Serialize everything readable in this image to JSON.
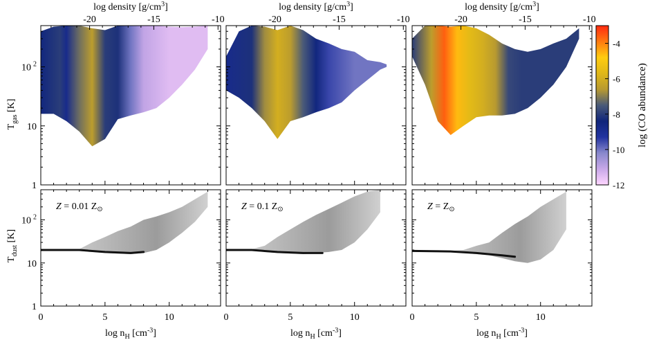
{
  "figure": {
    "top_axis_label": "log density [g/cm³]",
    "top_axis_label_base": "log density [g/cm",
    "top_axis_label_sup": "3",
    "top_axis_label_end": "]",
    "bottom_axis_label": "log n_H [cm⁻³]",
    "bottom_axis_label_parts": [
      "log n",
      "H",
      " [cm",
      "-3",
      "]"
    ],
    "row_labels": {
      "gas": {
        "main": "T",
        "sub": "gas",
        "unit": " [K]"
      },
      "dust": {
        "main": "T",
        "sub": "dust",
        "unit": " [K]"
      }
    },
    "panel_annotations": [
      {
        "prefix": "Z",
        "text": " = 0.01 Z",
        "sun": "⊙"
      },
      {
        "prefix": "Z",
        "text": " = 0.1 Z",
        "sun": "⊙"
      },
      {
        "prefix": "Z",
        "text": " = Z",
        "sun": "⊙"
      }
    ],
    "colorbar": {
      "label": "log (CO abundance)",
      "ticks": [
        -4,
        -6,
        -8,
        -10,
        -12
      ],
      "range": [
        -12,
        -3
      ],
      "colors": [
        "#ffd6ff",
        "#c8a8e8",
        "#8888cc",
        "#2233a0",
        "#10257a",
        "#4a5a78",
        "#b89a30",
        "#e0b818",
        "#ffcc10",
        "#ff7a10",
        "#ff2a10"
      ]
    }
  },
  "chart_data": [
    {
      "type": "heatmap",
      "panel": "top-left",
      "metallicity": "0.01 Z⊙",
      "x_bottom": {
        "label": "log n_H [cm^-3]",
        "range": [
          0,
          14
        ],
        "ticks": [
          0,
          5,
          10
        ]
      },
      "x_top": {
        "label": "log density [g/cm3]",
        "ticks": [
          -20,
          -15,
          -10
        ]
      },
      "y": {
        "label": "T_gas [K]",
        "scale": "log",
        "range": [
          1,
          500
        ],
        "ticks": [
          1,
          10,
          100
        ],
        "tick_labels": [
          "1",
          "10",
          "10²"
        ]
      },
      "color": "log (CO abundance)",
      "upper_envelope": [
        [
          0,
          400
        ],
        [
          1,
          480
        ],
        [
          2,
          500
        ],
        [
          3,
          500
        ],
        [
          4,
          450
        ],
        [
          5,
          420
        ],
        [
          6,
          500
        ],
        [
          7,
          500
        ],
        [
          8,
          500
        ],
        [
          9,
          500
        ],
        [
          10,
          480
        ],
        [
          11,
          470
        ],
        [
          12,
          480
        ],
        [
          13,
          500
        ]
      ],
      "lower_envelope": [
        [
          0,
          16
        ],
        [
          1,
          16
        ],
        [
          2,
          12
        ],
        [
          3,
          8
        ],
        [
          4,
          4.5
        ],
        [
          5,
          6
        ],
        [
          6,
          13
        ],
        [
          7,
          15
        ],
        [
          8,
          17
        ],
        [
          9,
          20
        ],
        [
          10,
          30
        ],
        [
          11,
          50
        ],
        [
          12,
          90
        ],
        [
          13,
          200
        ]
      ],
      "abundance_profile": [
        [
          0,
          -8.5
        ],
        [
          1.5,
          -8
        ],
        [
          2,
          -8.8
        ],
        [
          3,
          -7.2
        ],
        [
          4,
          -6.5
        ],
        [
          5,
          -8
        ],
        [
          6,
          -8.2
        ],
        [
          7,
          -10
        ],
        [
          8,
          -11
        ],
        [
          10,
          -11.5
        ],
        [
          13,
          -11.5
        ]
      ]
    },
    {
      "type": "heatmap",
      "panel": "top-middle",
      "metallicity": "0.1 Z⊙",
      "x_bottom": {
        "label": "log n_H [cm^-3]",
        "range": [
          0,
          14
        ],
        "ticks": [
          0,
          5,
          10
        ]
      },
      "x_top": {
        "label": "log density [g/cm3]",
        "ticks": [
          -20,
          -15,
          -10
        ]
      },
      "y": {
        "label": "T_gas [K]",
        "scale": "log",
        "range": [
          1,
          500
        ],
        "ticks": [
          1,
          10,
          100
        ]
      },
      "color": "log (CO abundance)",
      "upper_envelope": [
        [
          0,
          150
        ],
        [
          1,
          400
        ],
        [
          2,
          500
        ],
        [
          3,
          480
        ],
        [
          4,
          420
        ],
        [
          5,
          500
        ],
        [
          6,
          420
        ],
        [
          7,
          300
        ],
        [
          8,
          250
        ],
        [
          9,
          200
        ],
        [
          10,
          180
        ],
        [
          11,
          130
        ],
        [
          12,
          120
        ],
        [
          12.5,
          110
        ]
      ],
      "lower_envelope": [
        [
          0,
          40
        ],
        [
          1,
          30
        ],
        [
          2,
          20
        ],
        [
          3,
          12
        ],
        [
          4,
          6
        ],
        [
          5,
          12
        ],
        [
          6,
          14
        ],
        [
          7,
          17
        ],
        [
          8,
          20
        ],
        [
          9,
          25
        ],
        [
          10,
          40
        ],
        [
          11,
          60
        ],
        [
          12,
          90
        ],
        [
          12.5,
          100
        ]
      ],
      "abundance_profile": [
        [
          0,
          -8.8
        ],
        [
          2,
          -8.2
        ],
        [
          3,
          -6.8
        ],
        [
          4,
          -6.0
        ],
        [
          5,
          -6.5
        ],
        [
          6,
          -7.5
        ],
        [
          7,
          -8.5
        ],
        [
          8,
          -9.5
        ],
        [
          10,
          -10
        ],
        [
          12.5,
          -10
        ]
      ]
    },
    {
      "type": "heatmap",
      "panel": "top-right",
      "metallicity": "Z⊙",
      "x_bottom": {
        "label": "log n_H [cm^-3]",
        "range": [
          0,
          14
        ],
        "ticks": [
          0,
          5,
          10
        ]
      },
      "x_top": {
        "label": "log density [g/cm3]",
        "ticks": [
          -20,
          -15,
          -10
        ]
      },
      "y": {
        "label": "T_gas [K]",
        "scale": "log",
        "range": [
          1,
          500
        ],
        "ticks": [
          1,
          10,
          100
        ]
      },
      "color": "log (CO abundance)",
      "upper_envelope": [
        [
          0,
          300
        ],
        [
          1,
          500
        ],
        [
          2,
          500
        ],
        [
          3,
          480
        ],
        [
          4,
          500
        ],
        [
          5,
          450
        ],
        [
          6,
          350
        ],
        [
          7,
          250
        ],
        [
          8,
          200
        ],
        [
          9,
          180
        ],
        [
          10,
          200
        ],
        [
          11,
          250
        ],
        [
          12,
          300
        ],
        [
          13,
          450
        ]
      ],
      "lower_envelope": [
        [
          0,
          150
        ],
        [
          1,
          50
        ],
        [
          2,
          12
        ],
        [
          3,
          7
        ],
        [
          4,
          10
        ],
        [
          5,
          14
        ],
        [
          6,
          15
        ],
        [
          7,
          15
        ],
        [
          8,
          16
        ],
        [
          9,
          20
        ],
        [
          10,
          30
        ],
        [
          11,
          50
        ],
        [
          12,
          100
        ],
        [
          13,
          300
        ]
      ],
      "abundance_profile": [
        [
          0,
          -8
        ],
        [
          1.5,
          -6.5
        ],
        [
          2.5,
          -3.6
        ],
        [
          3.5,
          -4.6
        ],
        [
          4.5,
          -5.6
        ],
        [
          5.5,
          -6
        ],
        [
          6.5,
          -6.6
        ],
        [
          7.5,
          -7.8
        ],
        [
          8.5,
          -8
        ],
        [
          13,
          -8
        ]
      ]
    },
    {
      "type": "heatmap",
      "panel": "bottom-left",
      "annotation": "Z = 0.01 Z⊙",
      "x": {
        "label": "log n_H [cm^-3]",
        "range": [
          0,
          14
        ],
        "ticks": [
          0,
          5,
          10
        ]
      },
      "y": {
        "label": "T_dust [K]",
        "scale": "log",
        "range": [
          1,
          500
        ],
        "ticks": [
          1,
          10,
          100
        ]
      },
      "color": "grayscale density",
      "core_line": [
        [
          0,
          20
        ],
        [
          3,
          20
        ],
        [
          5,
          18
        ],
        [
          7,
          17
        ],
        [
          8,
          18
        ]
      ],
      "upper_envelope": [
        [
          3,
          21
        ],
        [
          4,
          30
        ],
        [
          5,
          40
        ],
        [
          6,
          55
        ],
        [
          7,
          70
        ],
        [
          8,
          100
        ],
        [
          9,
          120
        ],
        [
          10,
          150
        ],
        [
          11,
          200
        ],
        [
          12,
          300
        ],
        [
          13,
          450
        ]
      ],
      "lower_envelope": [
        [
          3,
          19
        ],
        [
          5,
          17
        ],
        [
          7,
          16
        ],
        [
          8,
          17
        ],
        [
          9,
          20
        ],
        [
          10,
          30
        ],
        [
          11,
          50
        ],
        [
          12,
          90
        ],
        [
          13,
          200
        ]
      ]
    },
    {
      "type": "heatmap",
      "panel": "bottom-middle",
      "annotation": "Z = 0.1 Z⊙",
      "x": {
        "label": "log n_H [cm^-3]",
        "range": [
          0,
          14
        ],
        "ticks": [
          0,
          5,
          10
        ]
      },
      "y": {
        "label": "T_dust [K]",
        "scale": "log",
        "range": [
          1,
          500
        ],
        "ticks": [
          1,
          10,
          100
        ]
      },
      "color": "grayscale density",
      "core_line": [
        [
          0,
          20
        ],
        [
          2,
          20
        ],
        [
          4,
          18
        ],
        [
          6,
          17
        ],
        [
          7.5,
          17
        ]
      ],
      "upper_envelope": [
        [
          2,
          21
        ],
        [
          3,
          25
        ],
        [
          4,
          40
        ],
        [
          5,
          60
        ],
        [
          6,
          90
        ],
        [
          7,
          130
        ],
        [
          8,
          180
        ],
        [
          9,
          250
        ],
        [
          10,
          350
        ],
        [
          11,
          450
        ],
        [
          12,
          500
        ]
      ],
      "lower_envelope": [
        [
          2,
          19
        ],
        [
          4,
          17
        ],
        [
          6,
          16
        ],
        [
          7,
          17
        ],
        [
          8,
          18
        ],
        [
          9,
          20
        ],
        [
          10,
          30
        ],
        [
          11,
          60
        ],
        [
          12,
          150
        ]
      ]
    },
    {
      "type": "heatmap",
      "panel": "bottom-right",
      "annotation": "Z = Z⊙",
      "x": {
        "label": "log n_H [cm^-3]",
        "range": [
          0,
          14
        ],
        "ticks": [
          0,
          5,
          10
        ]
      },
      "y": {
        "label": "T_dust [K]",
        "scale": "log",
        "range": [
          1,
          500
        ],
        "ticks": [
          1,
          10,
          100
        ]
      },
      "color": "grayscale density",
      "core_line": [
        [
          0,
          19
        ],
        [
          3,
          18.5
        ],
        [
          5,
          17
        ],
        [
          7,
          15
        ],
        [
          8,
          14
        ]
      ],
      "upper_envelope": [
        [
          3,
          19
        ],
        [
          4,
          20
        ],
        [
          5,
          25
        ],
        [
          6,
          30
        ],
        [
          7,
          50
        ],
        [
          8,
          80
        ],
        [
          9,
          120
        ],
        [
          10,
          200
        ],
        [
          11,
          300
        ],
        [
          12,
          450
        ]
      ],
      "lower_envelope": [
        [
          3,
          18
        ],
        [
          5,
          16
        ],
        [
          6,
          15
        ],
        [
          7,
          13
        ],
        [
          8,
          11
        ],
        [
          9,
          10
        ],
        [
          10,
          12
        ],
        [
          11,
          20
        ],
        [
          12,
          60
        ]
      ]
    }
  ]
}
